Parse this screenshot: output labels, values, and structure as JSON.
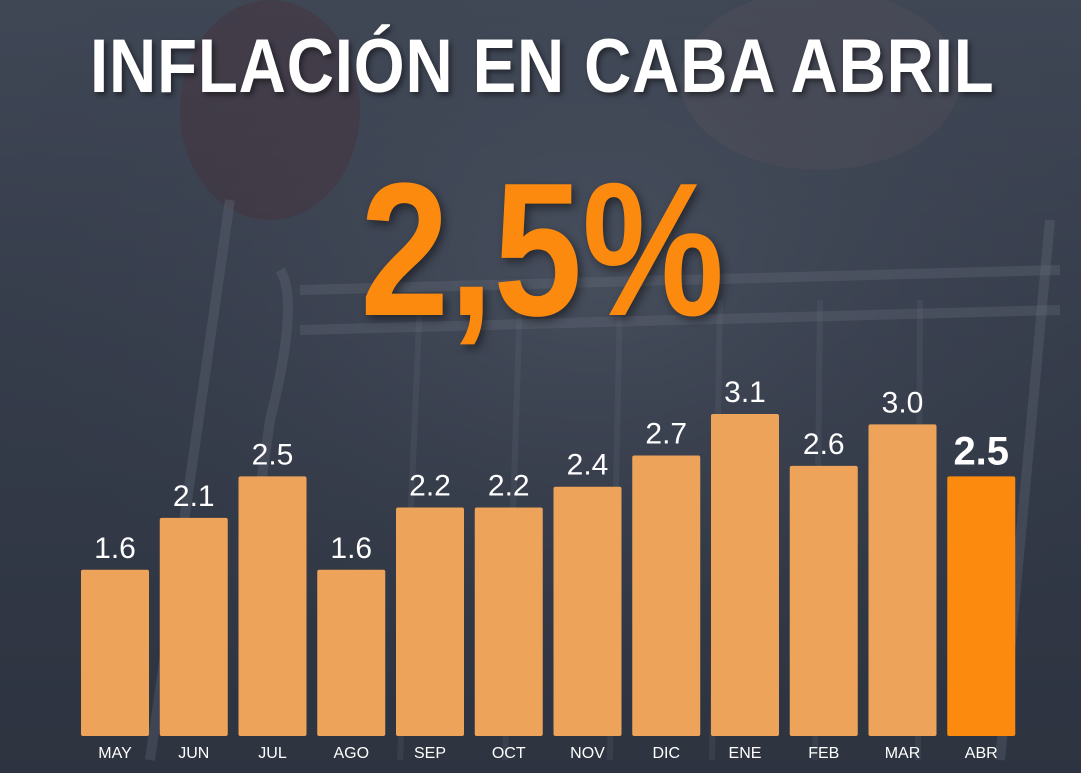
{
  "title": "INFLACIÓN EN CABA ABRIL",
  "headline_value": "2,5%",
  "colors": {
    "bar": "#eea35a",
    "highlight_bar": "#fb8a0e",
    "headline": "#fb8a0e",
    "text": "#ffffff"
  },
  "chart_data": {
    "type": "bar",
    "categories": [
      "MAY",
      "JUN",
      "JUL",
      "AGO",
      "SEP",
      "OCT",
      "NOV",
      "DIC",
      "ENE",
      "FEB",
      "MAR",
      "ABR"
    ],
    "values": [
      1.6,
      2.1,
      2.5,
      1.6,
      2.2,
      2.2,
      2.4,
      2.7,
      3.1,
      2.6,
      3.0,
      2.5
    ],
    "value_labels": [
      "1.6",
      "2.1",
      "2.5",
      "1.6",
      "2.2",
      "2.2",
      "2.4",
      "2.7",
      "3.1",
      "2.6",
      "3.0",
      "2.5"
    ],
    "highlight_category": "ABR",
    "ylim": [
      0,
      3.1
    ],
    "grid": false,
    "legend": "none",
    "title": "INFLACIÓN EN CABA ABRIL",
    "xlabel": "",
    "ylabel": ""
  }
}
